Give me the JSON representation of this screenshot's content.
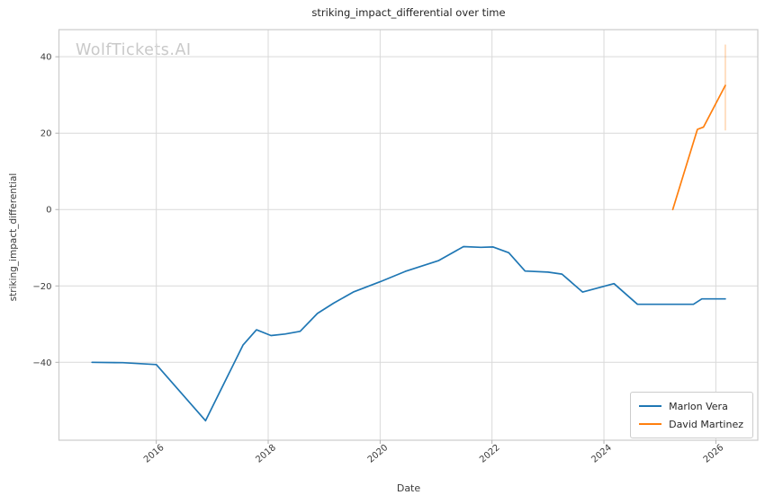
{
  "watermark": "WolfTickets.AI",
  "chart_data": {
    "type": "line",
    "title": "striking_impact_differential over time",
    "xlabel": "Date",
    "ylabel": "striking_impact_differential",
    "xlim": [
      2014.26,
      2026.75
    ],
    "ylim": [
      -60.4,
      47.1
    ],
    "xticks": [
      2016,
      2018,
      2020,
      2022,
      2024,
      2026
    ],
    "yticks": [
      -40,
      -20,
      0,
      20,
      40
    ],
    "grid": true,
    "legend_position": "lower right",
    "colors": {
      "grid": "#d9d9d9",
      "spine": "#cbcbcb",
      "tick": "#aaaaaa",
      "text": "#3b3b3b",
      "watermark": "#c9c9c9"
    },
    "series": [
      {
        "name": "Marlon Vera",
        "color": "#1f77b4",
        "points": [
          [
            2014.85,
            -40.0
          ],
          [
            2015.4,
            -40.1
          ],
          [
            2016.0,
            -40.6
          ],
          [
            2016.88,
            -55.3
          ],
          [
            2017.55,
            -35.5
          ],
          [
            2017.79,
            -31.5
          ],
          [
            2018.05,
            -33.0
          ],
          [
            2018.3,
            -32.6
          ],
          [
            2018.57,
            -31.9
          ],
          [
            2018.88,
            -27.2
          ],
          [
            2019.17,
            -24.5
          ],
          [
            2019.52,
            -21.6
          ],
          [
            2020.0,
            -18.9
          ],
          [
            2020.45,
            -16.2
          ],
          [
            2021.04,
            -13.4
          ],
          [
            2021.49,
            -9.7
          ],
          [
            2021.8,
            -9.9
          ],
          [
            2022.02,
            -9.8
          ],
          [
            2022.3,
            -11.3
          ],
          [
            2022.59,
            -16.1
          ],
          [
            2023.0,
            -16.4
          ],
          [
            2023.25,
            -16.9
          ],
          [
            2023.62,
            -21.6
          ],
          [
            2024.18,
            -19.4
          ],
          [
            2024.6,
            -24.8
          ],
          [
            2025.6,
            -24.8
          ],
          [
            2025.75,
            -23.4
          ],
          [
            2026.17,
            -23.4
          ]
        ]
      },
      {
        "name": "David Martinez",
        "color": "#ff7f0e",
        "points": [
          [
            2025.23,
            0.0
          ],
          [
            2025.67,
            21.0
          ],
          [
            2025.78,
            21.6
          ],
          [
            2026.17,
            32.5
          ]
        ],
        "error_bar": {
          "x": 2026.17,
          "from": 20.7,
          "to": 43.2
        }
      }
    ]
  }
}
